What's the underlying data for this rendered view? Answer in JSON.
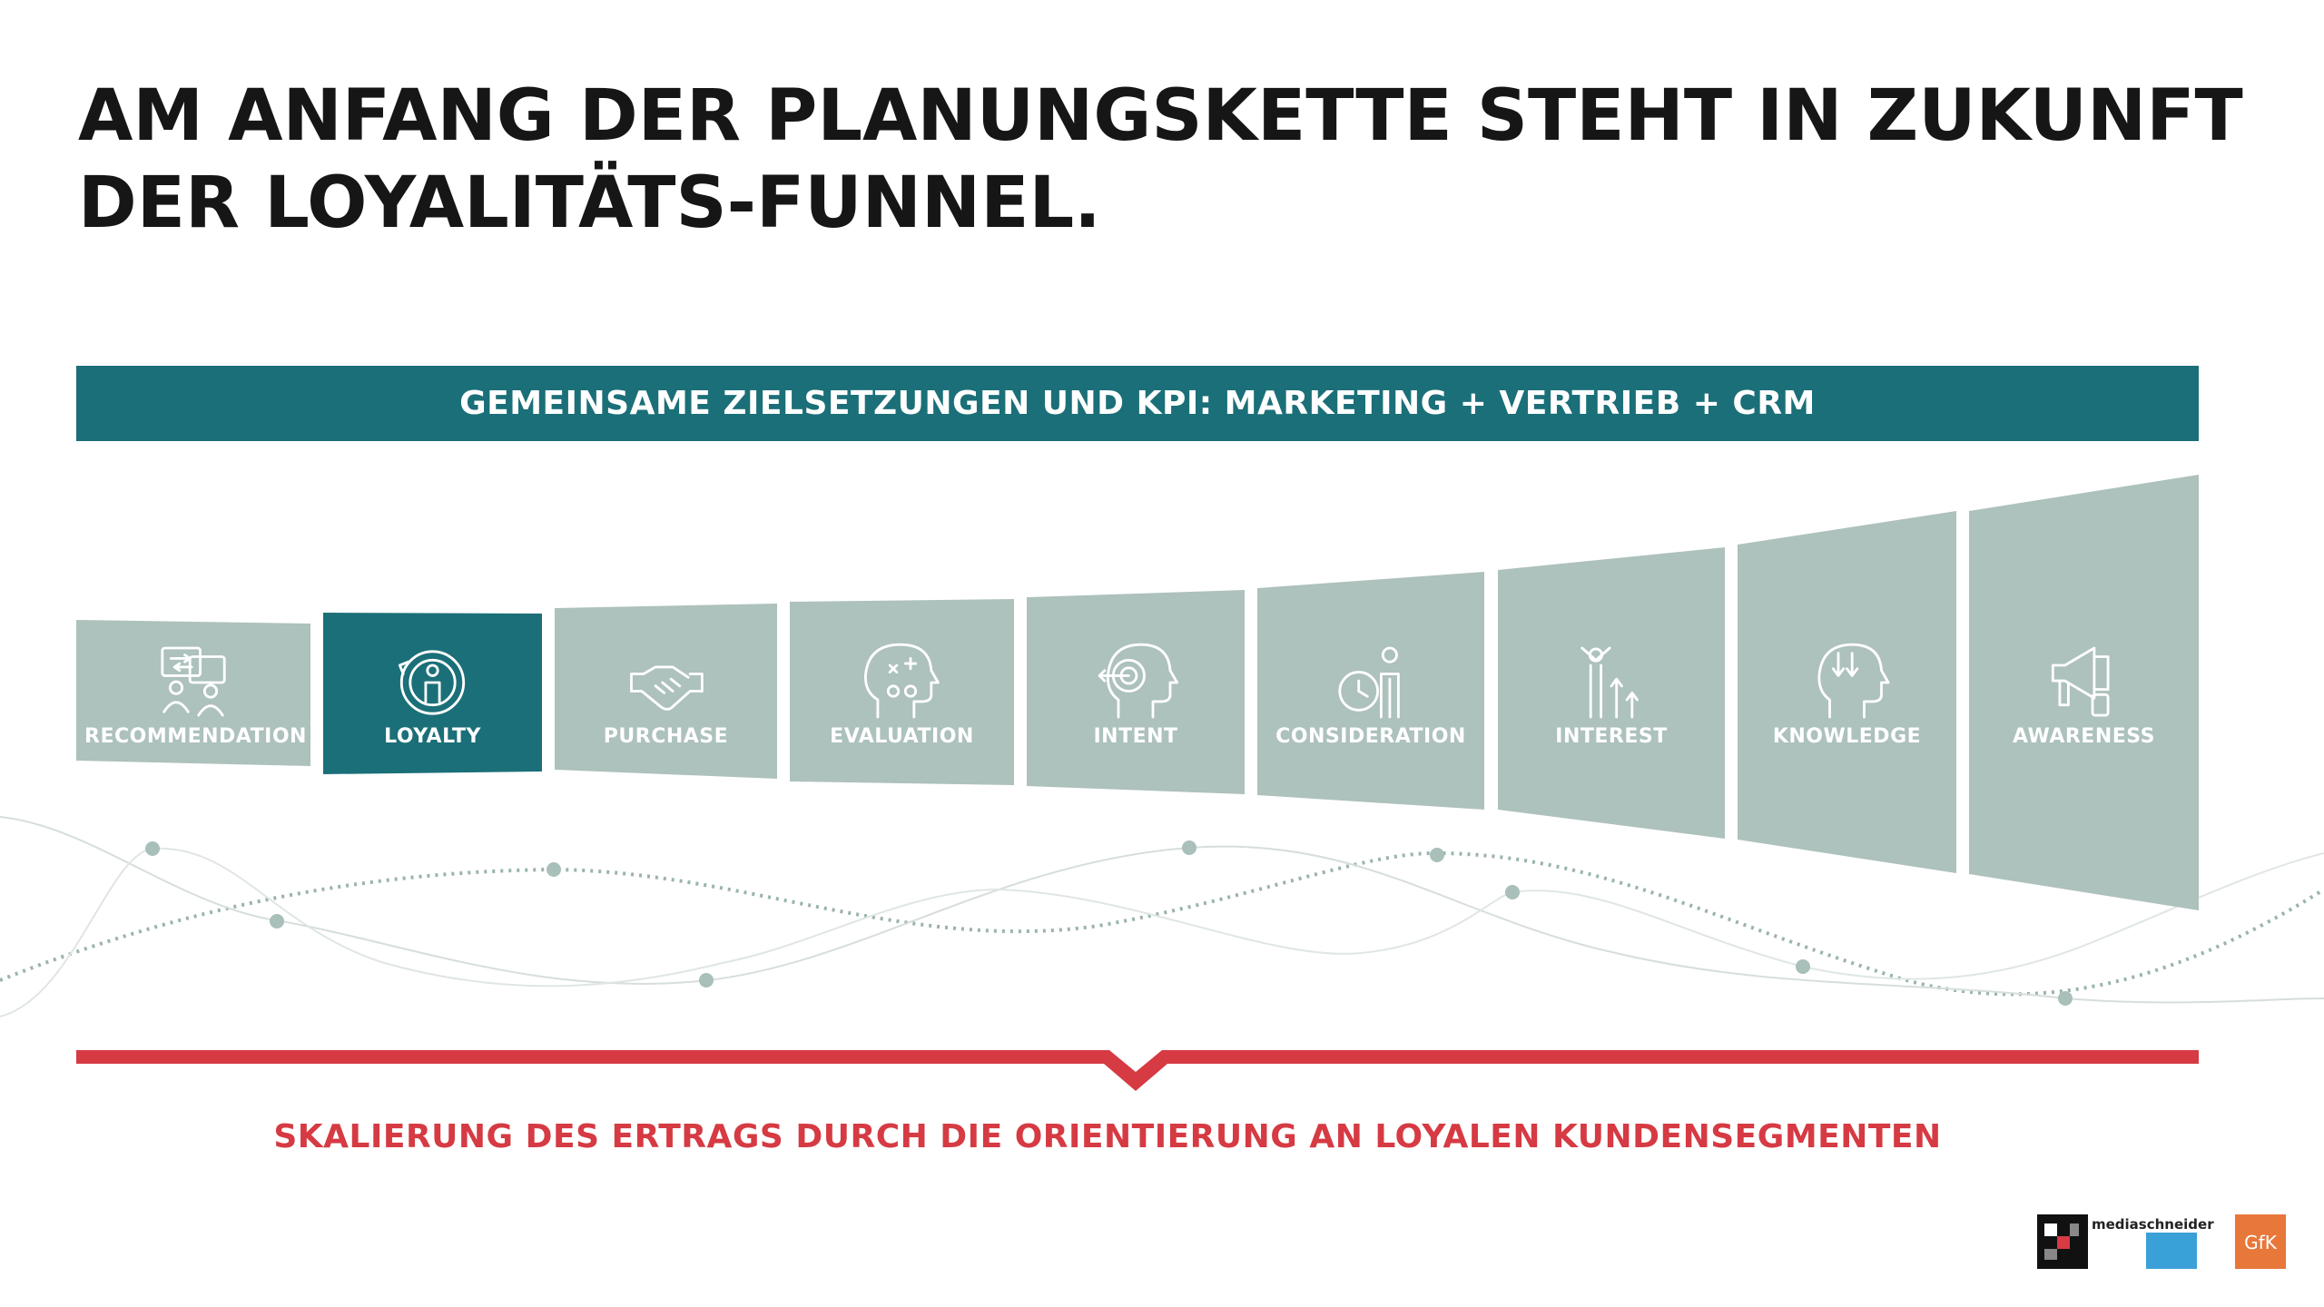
{
  "title": {
    "line1": "AM ANFANG DER PLANUNGSKETTE STEHT IN ZUKUNFT",
    "line2": "DER LOYALITÄTS-FUNNEL."
  },
  "banner": {
    "text": "GEMEINSAME ZIELSETZUNGEN UND KPI: MARKETING + VERTRIEB + CRM"
  },
  "funnel": {
    "stages": [
      {
        "label": "RECOMMENDATION",
        "icon": "recommendation-icon",
        "highlight": false
      },
      {
        "label": "LOYALTY",
        "icon": "loyalty-icon",
        "highlight": true
      },
      {
        "label": "PURCHASE",
        "icon": "handshake-icon",
        "highlight": false
      },
      {
        "label": "EVALUATION",
        "icon": "evaluation-head-icon",
        "highlight": false
      },
      {
        "label": "INTENT",
        "icon": "target-head-icon",
        "highlight": false
      },
      {
        "label": "CONSIDERATION",
        "icon": "person-clock-icon",
        "highlight": false
      },
      {
        "label": "INTEREST",
        "icon": "growth-person-icon",
        "highlight": false
      },
      {
        "label": "KNOWLEDGE",
        "icon": "knowledge-head-icon",
        "highlight": false
      },
      {
        "label": "AWARENESS",
        "icon": "megaphone-icon",
        "highlight": false
      }
    ]
  },
  "caption": {
    "text": "SKALIERUNG DES ERTRAGS DURCH DIE ORIENTIERUNG AN LOYALEN KUNDENSEGMENTEN"
  },
  "logos": {
    "brand_text": "mediaschneider",
    "gfk_text": "GfK"
  },
  "colors": {
    "teal": "#1b6f78",
    "stage_gray": "#adc1bd",
    "red": "#d63a43",
    "title": "#161616"
  }
}
